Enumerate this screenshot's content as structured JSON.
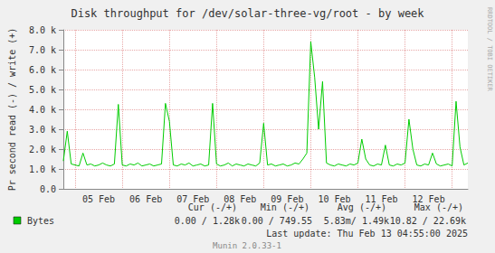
{
  "chart_data": {
    "type": "line",
    "title": "Disk throughput for /dev/solar-three-vg/root - by week",
    "y_label": "Pr second read (-) / write (+)",
    "categories": [
      null,
      null,
      null,
      null,
      null,
      null,
      null,
      null,
      null,
      "05 Feb",
      null,
      null,
      null,
      null,
      null,
      null,
      null,
      null,
      null,
      null,
      null,
      "06 Feb",
      null,
      null,
      null,
      null,
      null,
      null,
      null,
      null,
      null,
      null,
      null,
      "07 Feb",
      null,
      null,
      null,
      null,
      null,
      null,
      null,
      null,
      null,
      null,
      null,
      "08 Feb",
      null,
      null,
      null,
      null,
      null,
      null,
      null,
      null,
      null,
      null,
      null,
      "09 Feb",
      null,
      null,
      null,
      null,
      null,
      null,
      null,
      null,
      null,
      null,
      null,
      "10 Feb",
      null,
      null,
      null,
      null,
      null,
      null,
      null,
      null,
      null,
      null,
      null,
      "11 Feb",
      null,
      null,
      null,
      null,
      null,
      null,
      null,
      null,
      null,
      null,
      null,
      "12 Feb",
      null,
      null,
      null,
      null,
      null,
      null,
      null,
      null,
      null,
      null
    ],
    "series": [
      {
        "name": "Bytes",
        "color": "#00cc00",
        "values": [
          1400,
          2900,
          1250,
          1200,
          1150,
          1800,
          1200,
          1250,
          1150,
          1200,
          1300,
          1200,
          1150,
          1250,
          4250,
          1200,
          1150,
          1250,
          1200,
          1300,
          1150,
          1200,
          1250,
          1150,
          1200,
          1250,
          4300,
          3400,
          1200,
          1150,
          1250,
          1200,
          1300,
          1150,
          1200,
          1250,
          1150,
          1200,
          4300,
          1250,
          1150,
          1200,
          1300,
          1150,
          1250,
          1200,
          1150,
          1250,
          1200,
          1150,
          1300,
          3300,
          1200,
          1250,
          1150,
          1200,
          1250,
          1150,
          1200,
          1300,
          1250,
          1500,
          1800,
          7400,
          5600,
          3000,
          5400,
          1300,
          1200,
          1150,
          1250,
          1200,
          1150,
          1250,
          1200,
          1300,
          2500,
          1500,
          1200,
          1150,
          1250,
          1200,
          2200,
          1200,
          1150,
          1250,
          1200,
          1300,
          3500,
          2000,
          1200,
          1150,
          1250,
          1200,
          1800,
          1250,
          1150,
          1200,
          1250,
          1150,
          4400,
          2100,
          1200,
          1300
        ]
      }
    ],
    "ylim": [
      0,
      8000
    ],
    "yticks": [
      {
        "value": 0,
        "label": "0.0"
      },
      {
        "value": 1000,
        "label": "1.0 k"
      },
      {
        "value": 2000,
        "label": "2.0 k"
      },
      {
        "value": 3000,
        "label": "3.0 k"
      },
      {
        "value": 4000,
        "label": "4.0 k"
      },
      {
        "value": 5000,
        "label": "5.0 k"
      },
      {
        "value": 6000,
        "label": "6.0 k"
      },
      {
        "value": 7000,
        "label": "7.0 k"
      },
      {
        "value": 8000,
        "label": "8.0 k"
      }
    ],
    "grid": true,
    "summary": {
      "columns": [
        "Cur (-/+)",
        "Min (-/+)",
        "Avg (-/+)",
        "Max (-/+)"
      ],
      "rows": [
        {
          "name": "Bytes",
          "color": "#00cc00",
          "values": [
            "0.00 / 1.28k",
            "0.00 / 749.55",
            "5.83m/ 1.49k",
            "10.82 / 22.69k"
          ]
        }
      ]
    },
    "footer": "Last update: Thu Feb 13 04:55:00 2025",
    "credit": "Munin 2.0.33-1",
    "watermark": "RRDTOOL / TOBI OETIKER"
  }
}
